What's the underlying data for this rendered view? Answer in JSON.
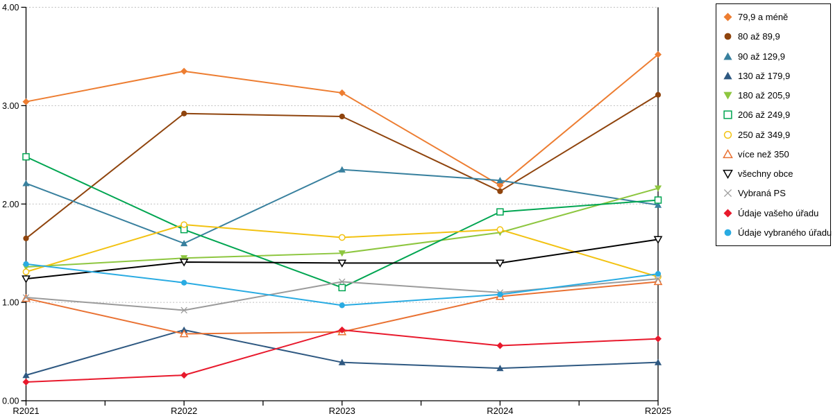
{
  "chart_data": {
    "type": "line",
    "title": "",
    "xlabel": "",
    "ylabel": "",
    "categories": [
      "R2021",
      "R2022",
      "R2023",
      "R2024",
      "R2025"
    ],
    "y_axis": {
      "min": 0,
      "max": 4,
      "tick_step": 1,
      "tick_labels": [
        "0.00",
        "1.00",
        "2.00",
        "3.00",
        "4.00"
      ]
    },
    "grid": "horizontal dotted lines at each major y tick",
    "legend_position": "right, boxed",
    "series": [
      {
        "name": "79,9 a méně",
        "color": "#ED7D31",
        "marker": "diamond",
        "fill": "filled",
        "values": [
          3.04,
          3.35,
          3.13,
          2.19,
          3.52
        ]
      },
      {
        "name": "80 až 89,9",
        "color": "#8F440D",
        "marker": "circle",
        "fill": "filled",
        "values": [
          1.65,
          2.92,
          2.89,
          2.13,
          3.11
        ]
      },
      {
        "name": "90 až 129,9",
        "color": "#38809E",
        "marker": "triangle-up",
        "fill": "filled",
        "values": [
          2.21,
          1.6,
          2.35,
          2.24,
          1.99
        ]
      },
      {
        "name": "130 až 179,9",
        "color": "#2E5881",
        "marker": "triangle-up",
        "fill": "filled",
        "values": [
          0.26,
          0.72,
          0.39,
          0.33,
          0.39
        ]
      },
      {
        "name": "180 až 205,9",
        "color": "#8DC63F",
        "marker": "triangle-down",
        "fill": "filled",
        "values": [
          1.36,
          1.45,
          1.5,
          1.71,
          2.16
        ]
      },
      {
        "name": "206 až 249,9",
        "color": "#00A551",
        "marker": "square",
        "fill": "open",
        "values": [
          2.48,
          1.74,
          1.15,
          1.92,
          2.04
        ]
      },
      {
        "name": "250 až 349,9",
        "color": "#F2C211",
        "marker": "circle",
        "fill": "open",
        "values": [
          1.31,
          1.79,
          1.66,
          1.74,
          1.26
        ]
      },
      {
        "name": "více než 350",
        "color": "#E97132",
        "marker": "triangle-up",
        "fill": "open",
        "values": [
          1.04,
          0.68,
          0.7,
          1.06,
          1.21
        ]
      },
      {
        "name": "všechny obce",
        "color": "#000000",
        "marker": "triangle-down",
        "fill": "open",
        "values": [
          1.24,
          1.41,
          1.4,
          1.4,
          1.64
        ]
      },
      {
        "name": "Vybraná PS",
        "color": "#9B9B9B",
        "marker": "x",
        "fill": "open",
        "values": [
          1.05,
          0.92,
          1.21,
          1.1,
          1.24
        ]
      },
      {
        "name": "Údaje vašeho úřadu",
        "color": "#E8192C",
        "marker": "diamond",
        "fill": "filled",
        "values": [
          0.19,
          0.26,
          0.72,
          0.56,
          0.63
        ]
      },
      {
        "name": "Údaje vybraného úřadu",
        "color": "#29ABE2",
        "marker": "circle",
        "fill": "filled",
        "values": [
          1.39,
          1.2,
          0.97,
          1.08,
          1.29
        ]
      }
    ]
  },
  "colors": {
    "background": "#FFFFFF",
    "axis": "#000000",
    "gridline": "#BDBDBD",
    "legend_border": "#000000",
    "tick_label": "#000000"
  }
}
